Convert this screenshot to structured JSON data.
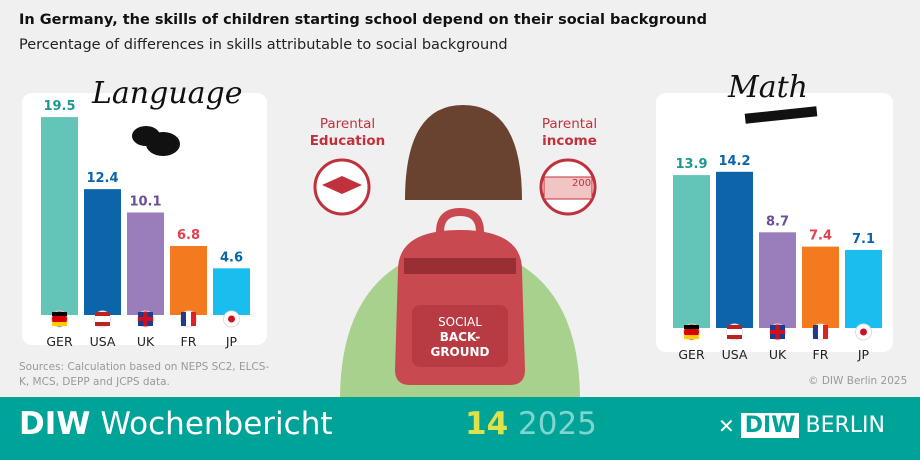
{
  "header": {
    "title": "In Germany, the skills of children starting school depend on their social background",
    "subtitle": "Percentage of differences in skills attributable to social background"
  },
  "chart_data": [
    {
      "type": "bar",
      "title": "Language",
      "categories": [
        "GER",
        "USA",
        "UK",
        "FR",
        "JP"
      ],
      "values": [
        19.5,
        12.4,
        10.1,
        6.8,
        4.6
      ],
      "colors": [
        "#62c5b8",
        "#0b65a8",
        "#9a7ebb",
        "#f47a20",
        "#19bdee"
      ],
      "label_colors": [
        "#1d9a8e",
        "#0b65a8",
        "#6a4f97",
        "#e0414e",
        "#0b65a8"
      ]
    },
    {
      "type": "bar",
      "title": "Math",
      "categories": [
        "GER",
        "USA",
        "UK",
        "FR",
        "JP"
      ],
      "values": [
        13.9,
        14.2,
        8.7,
        7.4,
        7.1
      ],
      "colors": [
        "#62c5b8",
        "#0b65a8",
        "#9a7ebb",
        "#f47a20",
        "#19bdee"
      ],
      "label_colors": [
        "#1d9a8e",
        "#0b65a8",
        "#6a4f97",
        "#e0414e",
        "#0b65a8"
      ]
    }
  ],
  "center": {
    "education_line1": "Parental",
    "education_line2": "Education",
    "income_line1": "Parental",
    "income_line2": "income",
    "banknote": "200",
    "backpack_line1": "SOCIAL",
    "backpack_line2": "BACK-",
    "backpack_line3": "GROUND"
  },
  "sources": "Sources: Calculation based on NEPS SC2, ELCS-K, MCS, DEPP and JCPS data.",
  "copyright": "© DIW Berlin 2025",
  "footer": {
    "brand_bold": "DIW",
    "brand_rest": " Wochenbericht",
    "issue_number": "14",
    "issue_year": "2025",
    "logo_box": "DIW",
    "logo_text": "BERLIN"
  }
}
